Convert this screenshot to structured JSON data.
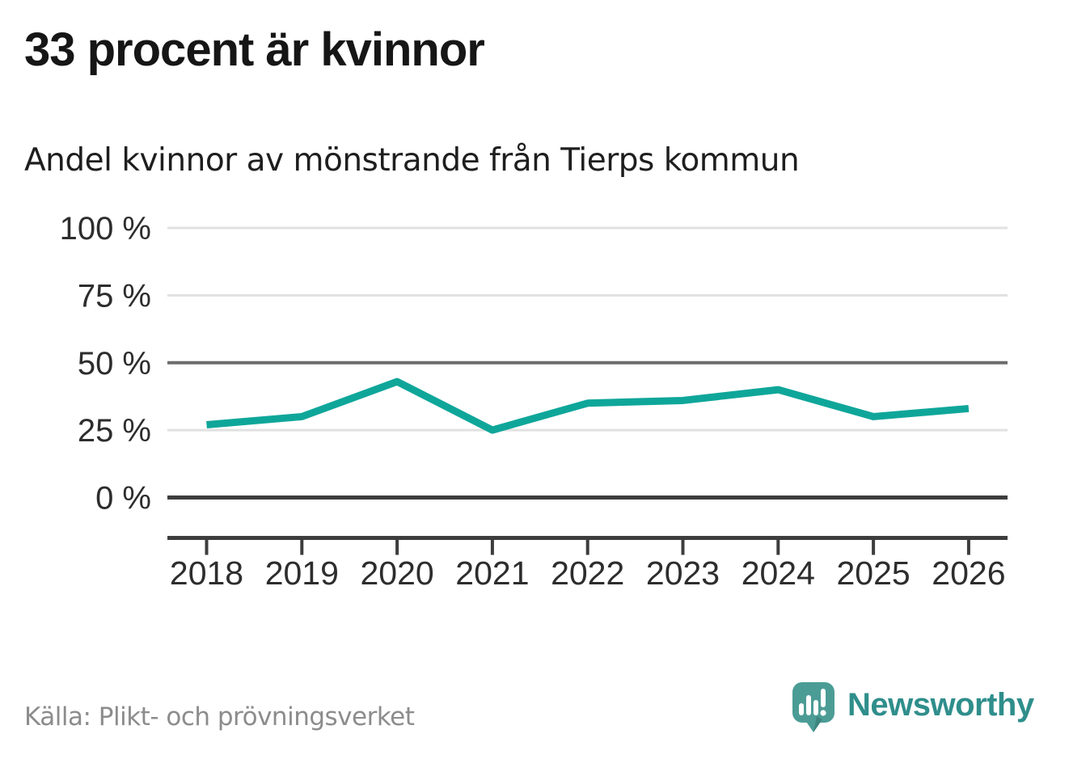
{
  "header": {
    "title": "33 procent är kvinnor",
    "subtitle": "Andel kvinnor av mönstrande från Tierps kommun"
  },
  "chart_data": {
    "type": "line",
    "title": "33 procent är kvinnor",
    "subtitle": "Andel kvinnor av mönstrande från Tierps kommun",
    "x": [
      2018,
      2019,
      2020,
      2021,
      2022,
      2023,
      2024,
      2025,
      2026
    ],
    "series": [
      {
        "name": "Andel kvinnor av mönstrande",
        "values": [
          27,
          30,
          43,
          25,
          35,
          36,
          40,
          30,
          33
        ]
      }
    ],
    "unit": "%",
    "ylim": [
      0,
      100
    ],
    "yticks": [
      0,
      25,
      50,
      75,
      100
    ],
    "ytick_labels": [
      "0 %",
      "25 %",
      "50 %",
      "75 %",
      "100 %"
    ],
    "xtick_labels": [
      "2018",
      "2019",
      "2020",
      "2021",
      "2022",
      "2023",
      "2024",
      "2025",
      "2026"
    ],
    "grid": "horizontal",
    "legend": "none",
    "line_color": "#0fa69a",
    "emphasized_gridlines": [
      0,
      50
    ]
  },
  "footer": {
    "source": "Källa: Plikt- och prövningsverket",
    "logo_text": "Newsworthy",
    "logo_color": "#4c9c96",
    "logo_text_color": "#2f8e8b"
  },
  "colors": {
    "axis_dark": "#3d3d3d",
    "grid_mid": "#6c6c6c",
    "grid_light": "#e1e1e1",
    "tick_label": "#2d2d2d",
    "title_text": "#161616",
    "source_text": "#8c8c8c"
  }
}
